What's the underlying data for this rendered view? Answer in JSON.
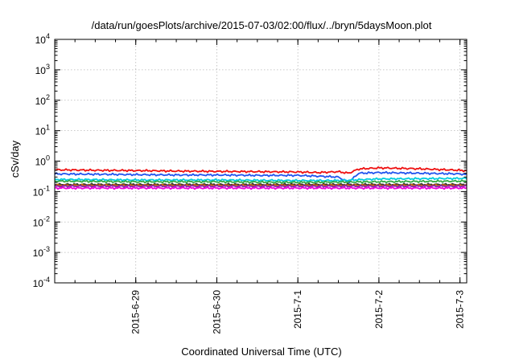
{
  "chart_data": {
    "type": "line",
    "title": "/data/run/goesPlots/archive/2015-07-03/02:00/flux/../bryn/5daysMoon.plot",
    "xlabel": "Coordinated Universal Time (UTC)",
    "ylabel": "cSv/day",
    "y_scale": "log",
    "xlim": [
      "2015-06-28T00:00",
      "2015-07-03T02:00"
    ],
    "ylim": [
      0.0001,
      10000
    ],
    "grid": true,
    "x_ticks": [
      {
        "label": "2015-6-29",
        "date": "2015-06-29T00:00"
      },
      {
        "label": "2015-6-30",
        "date": "2015-06-30T00:00"
      },
      {
        "label": "2015-7-1",
        "date": "2015-07-01T00:00"
      },
      {
        "label": "2015-7-2",
        "date": "2015-07-02T00:00"
      },
      {
        "label": "2015-7-3",
        "date": "2015-07-03T00:00"
      }
    ],
    "y_ticks": [
      {
        "value": 0.0001,
        "base": "10",
        "exp": "-4"
      },
      {
        "value": 0.001,
        "base": "10",
        "exp": "-3"
      },
      {
        "value": 0.01,
        "base": "10",
        "exp": "-2"
      },
      {
        "value": 0.1,
        "base": "10",
        "exp": "-1"
      },
      {
        "value": 1,
        "base": "10",
        "exp": "0"
      },
      {
        "value": 10,
        "base": "10",
        "exp": "1"
      },
      {
        "value": 100,
        "base": "10",
        "exp": "2"
      },
      {
        "value": 1000,
        "base": "10",
        "exp": "3"
      },
      {
        "value": 10000,
        "base": "10",
        "exp": "4"
      }
    ],
    "series": [
      {
        "color": "#ee1111",
        "x": [
          "2015-06-28T00:00",
          "2015-06-28T12:00",
          "2015-06-29T00:00",
          "2015-06-29T12:00",
          "2015-06-30T00:00",
          "2015-06-30T12:00",
          "2015-07-01T00:00",
          "2015-07-01T06:00",
          "2015-07-01T12:00",
          "2015-07-01T15:00",
          "2015-07-01T18:00",
          "2015-07-02T00:00",
          "2015-07-02T12:00",
          "2015-07-03T00:00",
          "2015-07-03T02:00"
        ],
        "values": [
          0.52,
          0.5,
          0.49,
          0.47,
          0.46,
          0.45,
          0.44,
          0.42,
          0.45,
          0.4,
          0.55,
          0.6,
          0.56,
          0.5,
          0.48
        ]
      },
      {
        "color": "#2255ee",
        "x": [
          "2015-06-28T00:00",
          "2015-06-28T12:00",
          "2015-06-29T00:00",
          "2015-06-29T12:00",
          "2015-06-30T00:00",
          "2015-06-30T12:00",
          "2015-07-01T00:00",
          "2015-07-01T06:00",
          "2015-07-01T12:00",
          "2015-07-01T15:00",
          "2015-07-01T18:00",
          "2015-07-02T00:00",
          "2015-07-02T12:00",
          "2015-07-03T00:00",
          "2015-07-03T02:00"
        ],
        "values": [
          0.38,
          0.37,
          0.36,
          0.35,
          0.35,
          0.34,
          0.34,
          0.32,
          0.3,
          0.2,
          0.4,
          0.42,
          0.4,
          0.38,
          0.36
        ]
      },
      {
        "color": "#00ccdd",
        "x": [
          "2015-06-28T00:00",
          "2015-06-29T00:00",
          "2015-06-30T00:00",
          "2015-07-01T00:00",
          "2015-07-01T12:00",
          "2015-07-02T00:00",
          "2015-07-03T00:00",
          "2015-07-03T02:00"
        ],
        "values": [
          0.25,
          0.24,
          0.24,
          0.23,
          0.23,
          0.26,
          0.27,
          0.27
        ]
      },
      {
        "color": "#33aa44",
        "x": [
          "2015-06-28T00:00",
          "2015-06-29T00:00",
          "2015-06-30T00:00",
          "2015-07-01T00:00",
          "2015-07-02T00:00",
          "2015-07-03T00:00",
          "2015-07-03T02:00"
        ],
        "values": [
          0.22,
          0.21,
          0.21,
          0.2,
          0.21,
          0.22,
          0.22
        ]
      },
      {
        "color": "#333333",
        "x": [
          "2015-06-28T00:00",
          "2015-06-29T00:00",
          "2015-06-30T00:00",
          "2015-07-01T00:00",
          "2015-07-02T00:00",
          "2015-07-03T00:00",
          "2015-07-03T02:00"
        ],
        "values": [
          0.17,
          0.17,
          0.17,
          0.17,
          0.17,
          0.17,
          0.17
        ]
      },
      {
        "color": "#cc6600",
        "x": [
          "2015-06-28T00:00",
          "2015-06-29T00:00",
          "2015-06-30T00:00",
          "2015-07-01T00:00",
          "2015-07-02T00:00",
          "2015-07-03T00:00",
          "2015-07-03T02:00"
        ],
        "values": [
          0.16,
          0.16,
          0.16,
          0.16,
          0.16,
          0.16,
          0.16
        ]
      },
      {
        "color": "#8822aa",
        "x": [
          "2015-06-28T00:00",
          "2015-06-29T00:00",
          "2015-06-30T00:00",
          "2015-07-01T00:00",
          "2015-07-02T00:00",
          "2015-07-03T00:00",
          "2015-07-03T02:00"
        ],
        "values": [
          0.15,
          0.15,
          0.15,
          0.15,
          0.15,
          0.15,
          0.15
        ]
      },
      {
        "color": "#ee00dd",
        "x": [
          "2015-06-28T00:00",
          "2015-06-29T00:00",
          "2015-06-30T00:00",
          "2015-07-01T00:00",
          "2015-07-02T00:00",
          "2015-07-03T00:00",
          "2015-07-03T02:00"
        ],
        "values": [
          0.13,
          0.13,
          0.13,
          0.13,
          0.13,
          0.13,
          0.13
        ]
      }
    ]
  }
}
